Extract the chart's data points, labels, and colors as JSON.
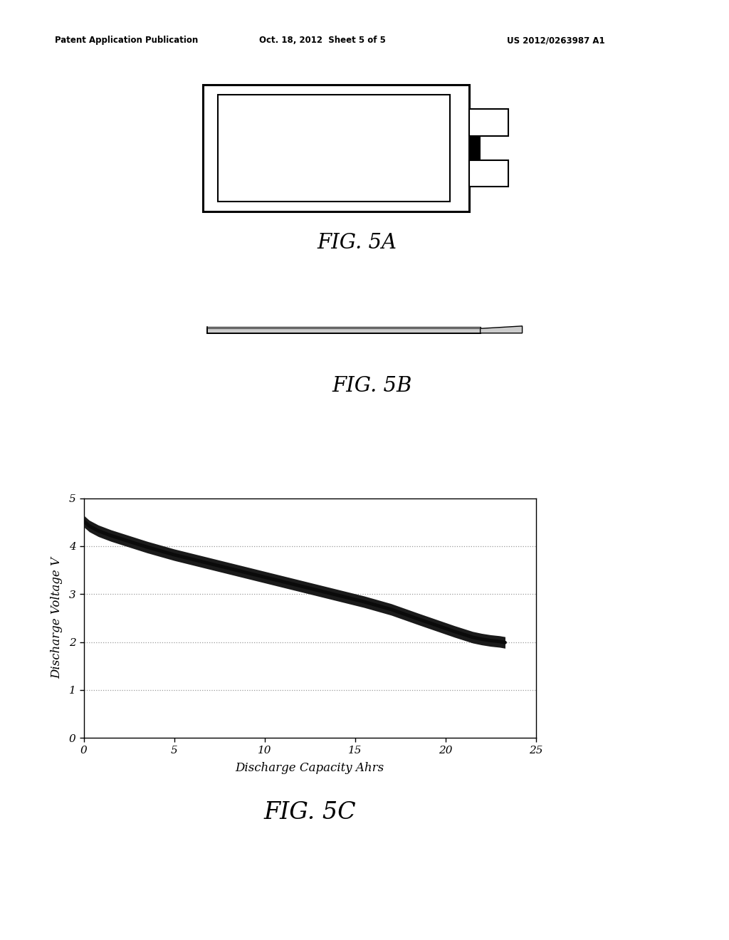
{
  "header_left": "Patent Application Publication",
  "header_mid": "Oct. 18, 2012  Sheet 5 of 5",
  "header_right": "US 2012/0263987 A1",
  "fig5a_label": "FIG. 5A",
  "fig5b_label": "FIG. 5B",
  "fig5c_label": "FIG. 5C",
  "graph_xlabel": "Discharge Capacity Ahrs",
  "graph_ylabel": "Discharge Voltage V",
  "graph_xlim": [
    0,
    25
  ],
  "graph_ylim": [
    0,
    5
  ],
  "graph_xticks": [
    0,
    5,
    10,
    15,
    20,
    25
  ],
  "graph_yticks": [
    0,
    1,
    2,
    3,
    4,
    5
  ],
  "curve_x": [
    0.0,
    0.3,
    0.8,
    1.5,
    2.5,
    3.5,
    5.0,
    6.5,
    8.0,
    9.5,
    11.0,
    12.5,
    14.0,
    15.5,
    17.0,
    18.5,
    19.5,
    20.5,
    21.5,
    22.0,
    22.5,
    23.0,
    23.3
  ],
  "curve_y": [
    4.52,
    4.42,
    4.32,
    4.22,
    4.1,
    3.98,
    3.82,
    3.68,
    3.54,
    3.4,
    3.26,
    3.12,
    2.98,
    2.84,
    2.68,
    2.48,
    2.35,
    2.22,
    2.1,
    2.06,
    2.03,
    2.01,
    1.99
  ],
  "background_color": "#ffffff",
  "line_color": "#1a1a1a",
  "grid_color": "#999999"
}
